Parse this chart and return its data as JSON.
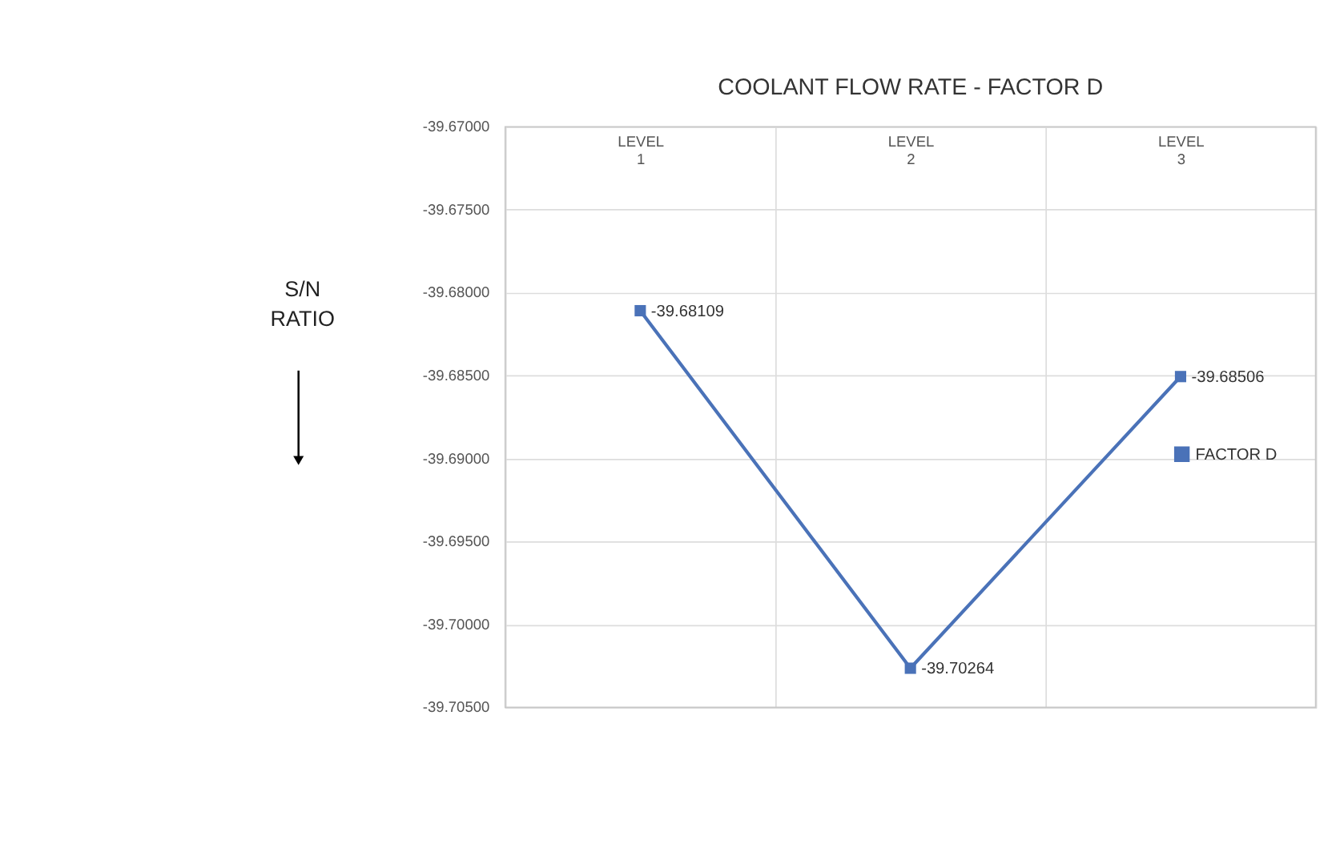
{
  "chart_data": {
    "type": "line",
    "title": "COOLANT FLOW RATE - FACTOR  D",
    "ylabel": "S/N RATIO",
    "categories": [
      "LEVEL 1",
      "LEVEL 2",
      "LEVEL 3"
    ],
    "series": [
      {
        "name": "FACTOR D",
        "color": "#4a72b8",
        "values": [
          -39.68109,
          -39.70264,
          -39.68506
        ]
      }
    ],
    "ylim": [
      -39.705,
      -39.67
    ],
    "yticks": [
      {
        "value": -39.67,
        "label": "-39.67000"
      },
      {
        "value": -39.675,
        "label": "-39.67500"
      },
      {
        "value": -39.68,
        "label": "-39.68000"
      },
      {
        "value": -39.685,
        "label": "-39.68500"
      },
      {
        "value": -39.69,
        "label": "-39.69000"
      },
      {
        "value": -39.695,
        "label": "-39.69500"
      },
      {
        "value": -39.7,
        "label": "-39.70000"
      },
      {
        "value": -39.705,
        "label": "-39.70500"
      }
    ],
    "grid": true,
    "legend": "right",
    "marker": "square",
    "line_style": "solid",
    "data_labels": true
  }
}
